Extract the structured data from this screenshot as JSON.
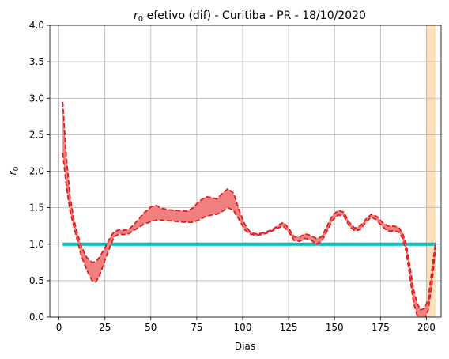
{
  "chart_data": {
    "type": "line",
    "title_symbol": "r",
    "title_subscript": "0",
    "title_rest": " efetivo (dif) - Curitiba - PR - 18/10/2020",
    "xlabel": "Dias",
    "ylabel_symbol": "r",
    "ylabel_subscript": "0",
    "xlim": [
      -5,
      208
    ],
    "ylim": [
      0.0,
      4.0
    ],
    "x_ticks": [
      0,
      25,
      50,
      75,
      100,
      125,
      150,
      175,
      200
    ],
    "y_ticks": [
      "0.0",
      "0.5",
      "1.0",
      "1.5",
      "2.0",
      "2.5",
      "3.0",
      "3.5",
      "4.0"
    ],
    "grid": true,
    "highlight_band": {
      "x_start": 200,
      "x_end": 205,
      "color": "#ffe0bd"
    },
    "reference_line": {
      "y": 1.0,
      "x_start": 2,
      "x_end": 205,
      "color": "#00bcbc"
    },
    "band_color": "#f08080",
    "line_color": "#e31a1c",
    "x": [
      2,
      4,
      6,
      8,
      10,
      12,
      15,
      18,
      20,
      22,
      25,
      28,
      30,
      33,
      35,
      38,
      40,
      43,
      46,
      50,
      53,
      56,
      60,
      65,
      70,
      73,
      76,
      80,
      83,
      86,
      89,
      92,
      95,
      98,
      101,
      104,
      107,
      110,
      113,
      116,
      119,
      122,
      125,
      128,
      131,
      134,
      137,
      140,
      143,
      146,
      149,
      152,
      155,
      158,
      161,
      164,
      167,
      170,
      173,
      176,
      179,
      182,
      185,
      187,
      189,
      191,
      193,
      195,
      197,
      199,
      201,
      203,
      205
    ],
    "upper": [
      2.95,
      2.2,
      1.65,
      1.35,
      1.15,
      0.98,
      0.82,
      0.75,
      0.76,
      0.82,
      0.95,
      1.1,
      1.17,
      1.2,
      1.19,
      1.2,
      1.25,
      1.33,
      1.42,
      1.51,
      1.53,
      1.49,
      1.47,
      1.46,
      1.45,
      1.5,
      1.58,
      1.65,
      1.64,
      1.62,
      1.7,
      1.76,
      1.7,
      1.47,
      1.28,
      1.17,
      1.14,
      1.15,
      1.17,
      1.2,
      1.25,
      1.3,
      1.22,
      1.1,
      1.1,
      1.14,
      1.12,
      1.08,
      1.1,
      1.25,
      1.4,
      1.46,
      1.44,
      1.3,
      1.22,
      1.25,
      1.34,
      1.41,
      1.38,
      1.3,
      1.25,
      1.25,
      1.23,
      1.15,
      1.0,
      0.7,
      0.38,
      0.18,
      0.1,
      0.12,
      0.25,
      0.65,
      1.02
    ],
    "lower": [
      2.25,
      1.8,
      1.45,
      1.25,
      1.05,
      0.85,
      0.65,
      0.5,
      0.48,
      0.56,
      0.78,
      0.98,
      1.1,
      1.14,
      1.13,
      1.14,
      1.18,
      1.22,
      1.27,
      1.31,
      1.33,
      1.33,
      1.32,
      1.31,
      1.3,
      1.3,
      1.33,
      1.38,
      1.4,
      1.41,
      1.45,
      1.5,
      1.46,
      1.34,
      1.2,
      1.14,
      1.12,
      1.13,
      1.15,
      1.18,
      1.22,
      1.25,
      1.17,
      1.05,
      1.04,
      1.08,
      1.06,
      1.0,
      1.04,
      1.18,
      1.33,
      1.4,
      1.39,
      1.25,
      1.18,
      1.2,
      1.3,
      1.37,
      1.33,
      1.24,
      1.18,
      1.18,
      1.17,
      1.08,
      0.9,
      0.55,
      0.2,
      0.02,
      -0.05,
      -0.03,
      0.1,
      0.45,
      0.96
    ]
  }
}
